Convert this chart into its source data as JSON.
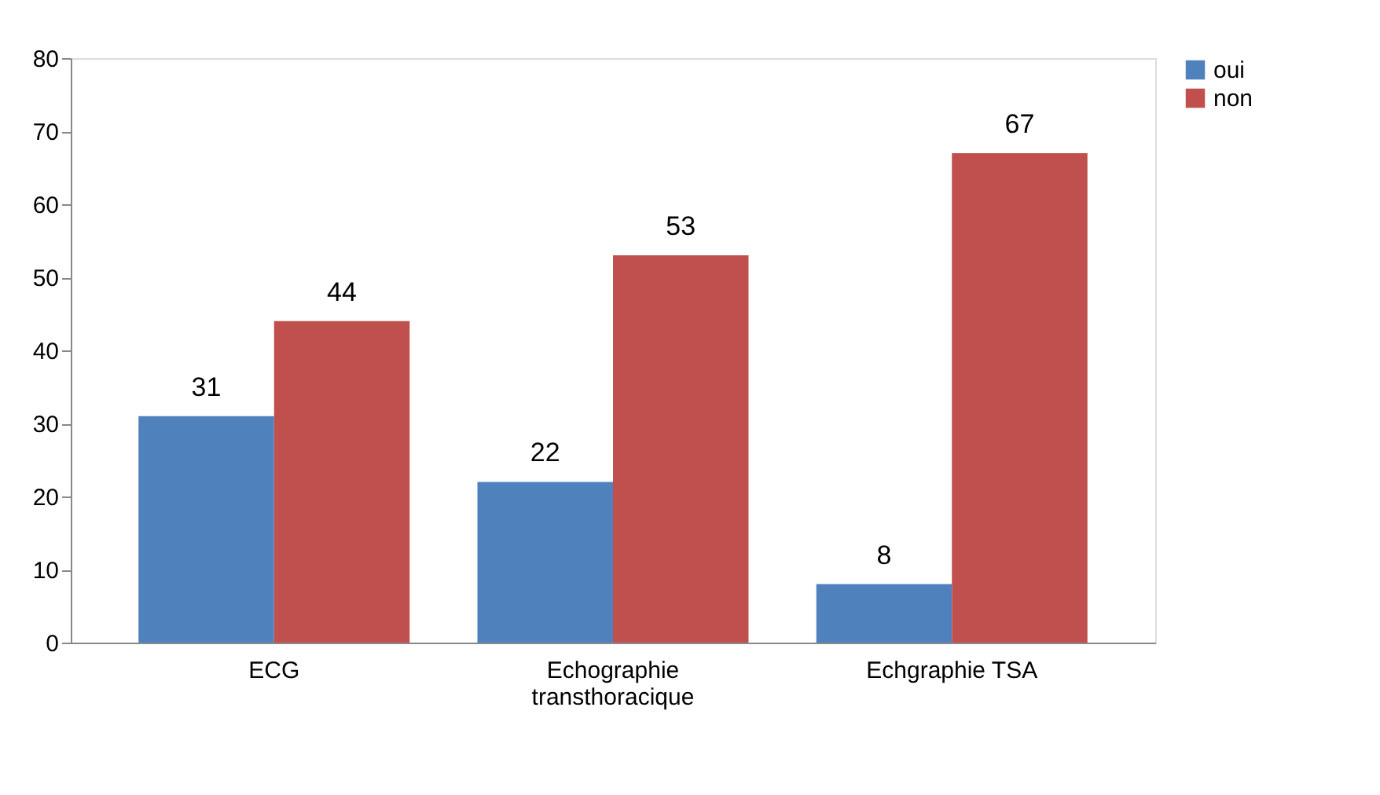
{
  "chart_data": {
    "type": "bar",
    "categories": [
      "ECG",
      "Echographie transthoracique",
      "Echgraphie TSA"
    ],
    "series": [
      {
        "name": "oui",
        "color": "#4f81bd",
        "values": [
          31,
          22,
          8
        ]
      },
      {
        "name": "non",
        "color": "#c0504d",
        "values": [
          44,
          53,
          67
        ]
      }
    ],
    "ylim": [
      0,
      80
    ],
    "yticks": [
      0,
      10,
      20,
      30,
      40,
      50,
      60,
      70,
      80
    ],
    "grid": false,
    "legend": "right",
    "data_labels": true
  }
}
